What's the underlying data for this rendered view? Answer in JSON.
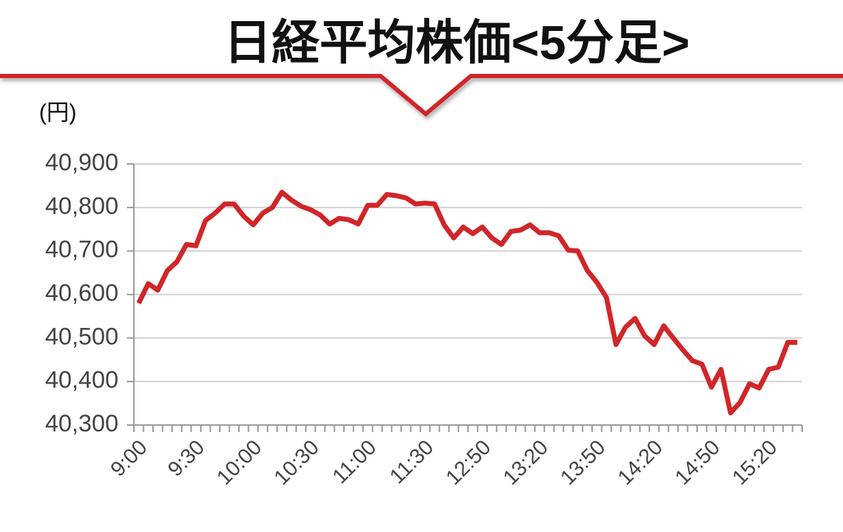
{
  "chart_data": {
    "type": "line",
    "title": "日経平均株価<5分足>",
    "y_unit": "(円)",
    "categories": [
      "9:00",
      null,
      null,
      null,
      null,
      null,
      "9:30",
      null,
      null,
      null,
      null,
      null,
      "10:00",
      null,
      null,
      null,
      null,
      null,
      "10:30",
      null,
      null,
      null,
      null,
      null,
      "11:00",
      null,
      null,
      null,
      null,
      null,
      "11:30",
      null,
      null,
      null,
      null,
      null,
      "12:50",
      null,
      null,
      null,
      null,
      null,
      "13:20",
      null,
      null,
      null,
      null,
      null,
      "13:50",
      null,
      null,
      null,
      null,
      null,
      "14:20",
      null,
      null,
      null,
      null,
      null,
      "14:50",
      null,
      null,
      null,
      null,
      null,
      "15:20",
      null,
      null,
      null
    ],
    "series": [
      {
        "name": "日経平均株価",
        "color": "#d0262a",
        "values": [
          40580,
          40625,
          40610,
          40655,
          40675,
          40715,
          40712,
          40770,
          40787,
          40808,
          40808,
          40780,
          40760,
          40787,
          40800,
          40835,
          40817,
          40803,
          40795,
          40783,
          40762,
          40775,
          40772,
          40762,
          40805,
          40805,
          40830,
          40827,
          40822,
          40808,
          40810,
          40808,
          40760,
          40730,
          40755,
          40740,
          40755,
          40730,
          40715,
          40745,
          40748,
          40760,
          40742,
          40742,
          40735,
          40702,
          40700,
          40655,
          40628,
          40593,
          40485,
          40525,
          40545,
          40505,
          40485,
          40528,
          40500,
          40473,
          40448,
          40440,
          40387,
          40428,
          40328,
          40352,
          40395,
          40385,
          40428,
          40433,
          40490,
          40490
        ]
      }
    ],
    "ylim": [
      40300,
      40900
    ],
    "yticks": [
      {
        "value": 40300,
        "label": "40,300"
      },
      {
        "value": 40400,
        "label": "40,400"
      },
      {
        "value": 40500,
        "label": "40,500"
      },
      {
        "value": 40600,
        "label": "40,600"
      },
      {
        "value": 40700,
        "label": "40,700"
      },
      {
        "value": 40800,
        "label": "40,800"
      },
      {
        "value": 40900,
        "label": "40,900"
      }
    ],
    "grid": true
  }
}
